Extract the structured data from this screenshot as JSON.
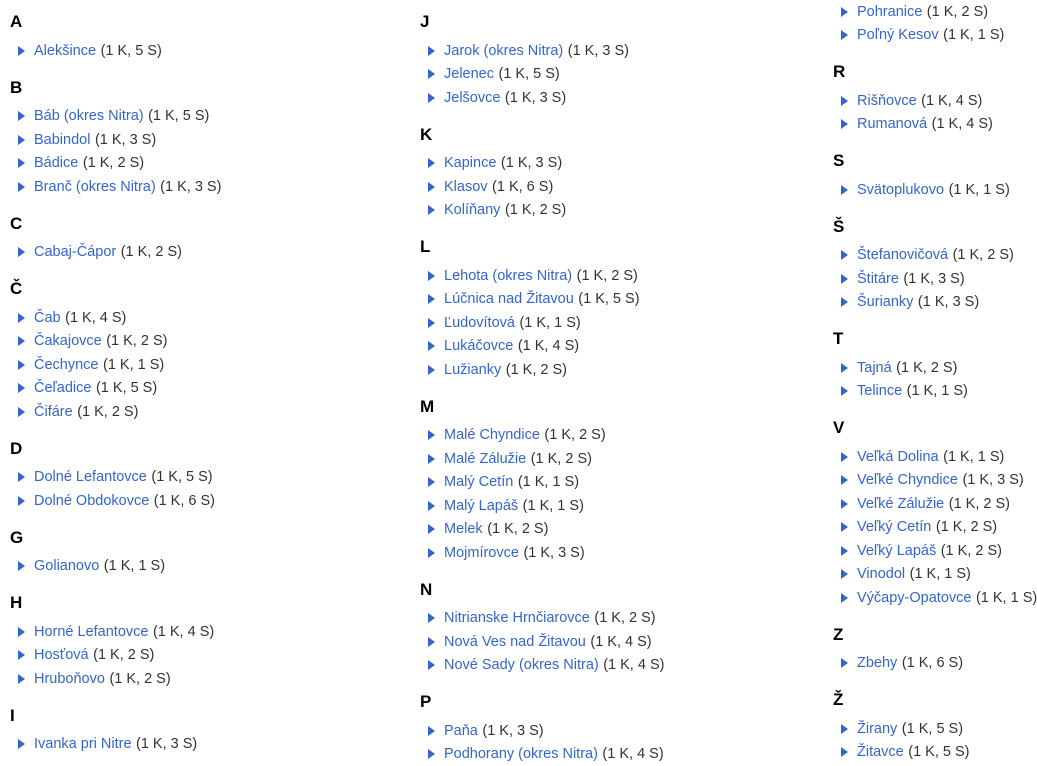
{
  "page": {
    "background": "#ffffff"
  },
  "colors": {
    "link": "#3366cc",
    "arrow": "#3366cc",
    "heading": "#000000",
    "count": "#333333"
  },
  "icons": {
    "expand": "triangle-right-icon"
  },
  "columns": [
    {
      "sections": [
        {
          "letter": "A",
          "items": [
            {
              "name": "Alekšince",
              "count": "(1 K, 5 S)"
            }
          ]
        },
        {
          "letter": "B",
          "items": [
            {
              "name": "Báb (okres Nitra)",
              "count": "(1 K, 5 S)"
            },
            {
              "name": "Babindol",
              "count": "(1 K, 3 S)"
            },
            {
              "name": "Bádice",
              "count": "(1 K, 2 S)"
            },
            {
              "name": "Branč (okres Nitra)",
              "count": "(1 K, 3 S)"
            }
          ]
        },
        {
          "letter": "C",
          "items": [
            {
              "name": "Cabaj-Čápor",
              "count": "(1 K, 2 S)"
            }
          ]
        },
        {
          "letter": "Č",
          "items": [
            {
              "name": "Čab",
              "count": "(1 K, 4 S)"
            },
            {
              "name": "Čakajovce",
              "count": "(1 K, 2 S)"
            },
            {
              "name": "Čechynce",
              "count": "(1 K, 1 S)"
            },
            {
              "name": "Čeľadice",
              "count": "(1 K, 5 S)"
            },
            {
              "name": "Čifáre",
              "count": "(1 K, 2 S)"
            }
          ]
        },
        {
          "letter": "D",
          "items": [
            {
              "name": "Dolné Lefantovce",
              "count": "(1 K, 5 S)"
            },
            {
              "name": "Dolné Obdokovce",
              "count": "(1 K, 6 S)"
            }
          ]
        },
        {
          "letter": "G",
          "items": [
            {
              "name": "Golianovo",
              "count": "(1 K, 1 S)"
            }
          ]
        },
        {
          "letter": "H",
          "items": [
            {
              "name": "Horné Lefantovce",
              "count": "(1 K, 4 S)"
            },
            {
              "name": "Hosťová",
              "count": "(1 K, 2 S)"
            },
            {
              "name": "Hruboňovo",
              "count": "(1 K, 2 S)"
            }
          ]
        },
        {
          "letter": "I",
          "items": [
            {
              "name": "Ivanka pri Nitre",
              "count": "(1 K, 3 S)"
            }
          ]
        }
      ]
    },
    {
      "sections": [
        {
          "letter": "J",
          "items": [
            {
              "name": "Jarok (okres Nitra)",
              "count": "(1 K, 3 S)"
            },
            {
              "name": "Jelenec",
              "count": "(1 K, 5 S)"
            },
            {
              "name": "Jelšovce",
              "count": "(1 K, 3 S)"
            }
          ]
        },
        {
          "letter": "K",
          "items": [
            {
              "name": "Kapince",
              "count": "(1 K, 3 S)"
            },
            {
              "name": "Klasov",
              "count": "(1 K, 6 S)"
            },
            {
              "name": "Kolíňany",
              "count": "(1 K, 2 S)"
            }
          ]
        },
        {
          "letter": "L",
          "items": [
            {
              "name": "Lehota (okres Nitra)",
              "count": "(1 K, 2 S)"
            },
            {
              "name": "Lúčnica nad Žitavou",
              "count": "(1 K, 5 S)"
            },
            {
              "name": "Ľudovítová",
              "count": "(1 K, 1 S)"
            },
            {
              "name": "Lukáčovce",
              "count": "(1 K, 4 S)"
            },
            {
              "name": "Lužianky",
              "count": "(1 K, 2 S)"
            }
          ]
        },
        {
          "letter": "M",
          "items": [
            {
              "name": "Malé Chyndice",
              "count": "(1 K, 2 S)"
            },
            {
              "name": "Malé Zálužie",
              "count": "(1 K, 2 S)"
            },
            {
              "name": "Malý Cetín",
              "count": "(1 K, 1 S)"
            },
            {
              "name": "Malý Lapáš",
              "count": "(1 K, 1 S)"
            },
            {
              "name": "Melek",
              "count": "(1 K, 2 S)"
            },
            {
              "name": "Mojmírovce",
              "count": "(1 K, 3 S)"
            }
          ]
        },
        {
          "letter": "N",
          "items": [
            {
              "name": "Nitrianske Hrnčiarovce",
              "count": "(1 K, 2 S)"
            },
            {
              "name": "Nová Ves nad Žitavou",
              "count": "(1 K, 4 S)"
            },
            {
              "name": "Nové Sady (okres Nitra)",
              "count": "(1 K, 4 S)"
            }
          ]
        },
        {
          "letter": "P",
          "items": [
            {
              "name": "Paňa",
              "count": "(1 K, 3 S)"
            },
            {
              "name": "Podhorany (okres Nitra)",
              "count": "(1 K, 4 S)"
            }
          ]
        }
      ]
    },
    {
      "sections": [
        {
          "letter": null,
          "items": [
            {
              "name": "Pohranice",
              "count": "(1 K, 2 S)"
            },
            {
              "name": "Poľný Kesov",
              "count": "(1 K, 1 S)"
            }
          ]
        },
        {
          "letter": "R",
          "items": [
            {
              "name": "Rišňovce",
              "count": "(1 K, 4 S)"
            },
            {
              "name": "Rumanová",
              "count": "(1 K, 4 S)"
            }
          ]
        },
        {
          "letter": "S",
          "items": [
            {
              "name": "Svätoplukovo",
              "count": "(1 K, 1 S)"
            }
          ]
        },
        {
          "letter": "Š",
          "items": [
            {
              "name": "Štefanovičová",
              "count": "(1 K, 2 S)"
            },
            {
              "name": "Štitáre",
              "count": "(1 K, 3 S)"
            },
            {
              "name": "Šurianky",
              "count": "(1 K, 3 S)"
            }
          ]
        },
        {
          "letter": "T",
          "items": [
            {
              "name": "Tajná",
              "count": "(1 K, 2 S)"
            },
            {
              "name": "Telince",
              "count": "(1 K, 1 S)"
            }
          ]
        },
        {
          "letter": "V",
          "items": [
            {
              "name": "Veľká Dolina",
              "count": "(1 K, 1 S)"
            },
            {
              "name": "Veľké Chyndice",
              "count": "(1 K, 3 S)"
            },
            {
              "name": "Veľké Zálužie",
              "count": "(1 K, 2 S)"
            },
            {
              "name": "Veľký Cetín",
              "count": "(1 K, 2 S)"
            },
            {
              "name": "Veľký Lapáš",
              "count": "(1 K, 2 S)"
            },
            {
              "name": "Vinodol",
              "count": "(1 K, 1 S)"
            },
            {
              "name": "Výčapy-Opatovce",
              "count": "(1 K, 1 S)"
            }
          ]
        },
        {
          "letter": "Z",
          "items": [
            {
              "name": "Zbehy",
              "count": "(1 K, 6 S)"
            }
          ]
        },
        {
          "letter": "Ž",
          "items": [
            {
              "name": "Žirany",
              "count": "(1 K, 5 S)"
            },
            {
              "name": "Žitavce",
              "count": "(1 K, 5 S)"
            }
          ]
        }
      ]
    }
  ]
}
